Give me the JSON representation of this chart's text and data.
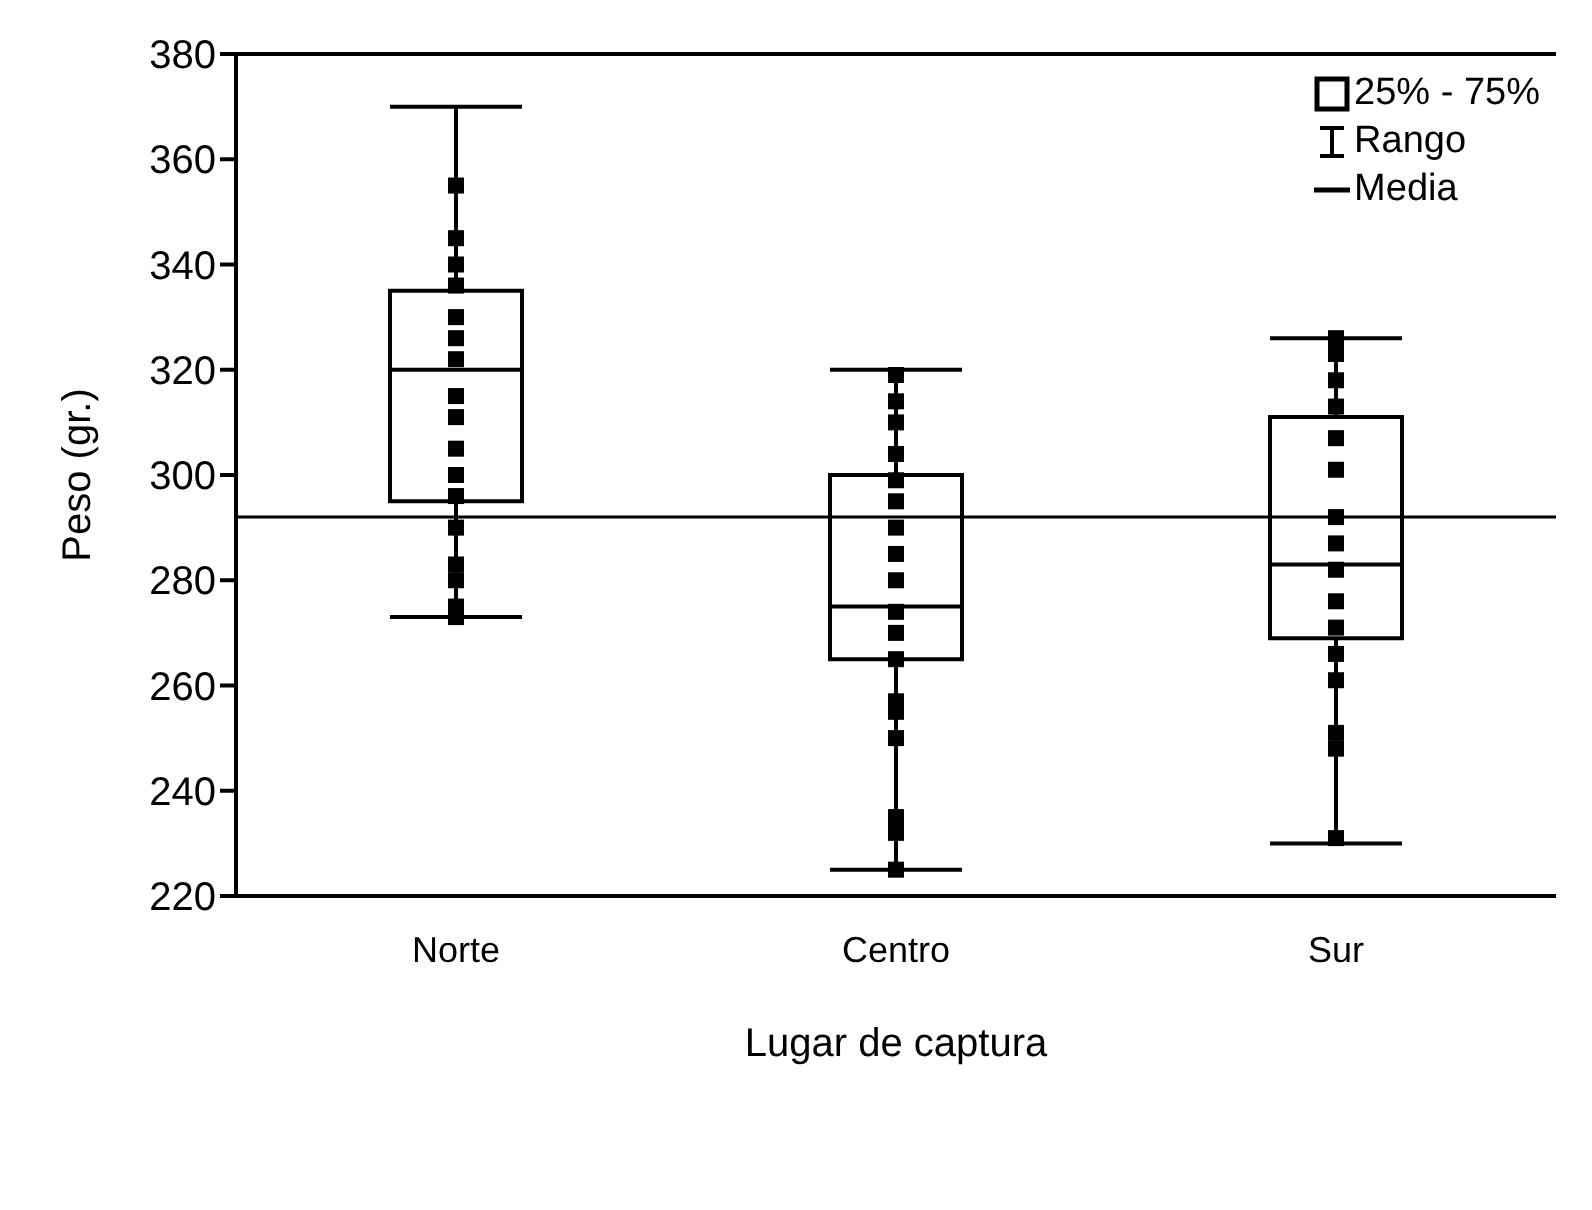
{
  "chart_data": {
    "type": "box",
    "xlabel": "Lugar de captura",
    "ylabel": "Peso (gr.)",
    "categories": [
      "Norte",
      "Centro",
      "Sur"
    ],
    "boxes": [
      {
        "low": 273,
        "q1": 295,
        "median": 320,
        "q3": 335,
        "high": 370
      },
      {
        "low": 225,
        "q1": 265,
        "median": 275,
        "q3": 300,
        "high": 320
      },
      {
        "low": 230,
        "q1": 269,
        "median": 283,
        "q3": 311,
        "high": 326
      }
    ],
    "ylim": [
      220,
      380
    ],
    "yticks": [
      220,
      240,
      260,
      280,
      300,
      320,
      340,
      360,
      380
    ],
    "annotations": [
      "25% - 75%",
      "Rango",
      "Media"
    ],
    "ref_lines": [
      {
        "axis": "y",
        "value": 292,
        "color": "#000000"
      }
    ],
    "series": [
      {
        "type": "scatter",
        "color": "#000000",
        "marker": "square",
        "x": [
          "Norte",
          "Norte",
          "Norte",
          "Norte",
          "Norte",
          "Norte",
          "Norte",
          "Norte",
          "Norte",
          "Norte",
          "Norte",
          "Norte",
          "Norte",
          "Norte",
          "Norte",
          "Norte",
          "Norte",
          "Centro",
          "Centro",
          "Centro",
          "Centro",
          "Centro",
          "Centro",
          "Centro",
          "Centro",
          "Centro",
          "Centro",
          "Centro",
          "Centro",
          "Centro",
          "Centro",
          "Centro",
          "Centro",
          "Centro",
          "Centro",
          "Sur",
          "Sur",
          "Sur",
          "Sur",
          "Sur",
          "Sur",
          "Sur",
          "Sur",
          "Sur",
          "Sur",
          "Sur",
          "Sur",
          "Sur",
          "Sur",
          "Sur",
          "Sur"
        ],
        "values": [
          355,
          345,
          340,
          336,
          330,
          326,
          322,
          315,
          311,
          305,
          300,
          296,
          290,
          283,
          280,
          275,
          273,
          319,
          314,
          310,
          304,
          299,
          295,
          290,
          285,
          280,
          274,
          270,
          265,
          257,
          255,
          250,
          235,
          232,
          225,
          326,
          323,
          318,
          313,
          307,
          301,
          292,
          287,
          282,
          276,
          271,
          266,
          261,
          251,
          248,
          231
        ]
      }
    ]
  }
}
